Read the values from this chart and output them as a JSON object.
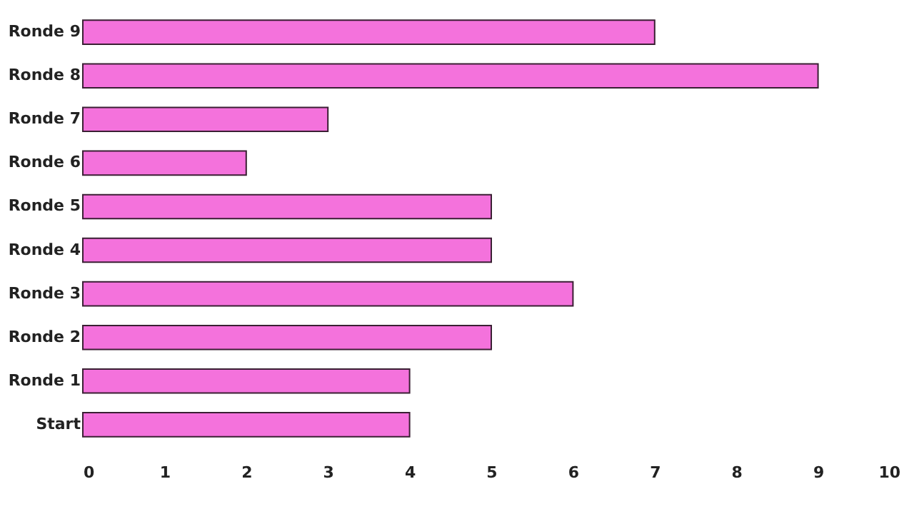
{
  "chart_data": {
    "type": "bar",
    "orientation": "horizontal",
    "categories": [
      "Ronde 9",
      "Ronde 8",
      "Ronde 7",
      "Ronde 6",
      "Ronde 5",
      "Ronde 4",
      "Ronde 3",
      "Ronde 2",
      "Ronde 1",
      "Start"
    ],
    "values": [
      7,
      9,
      3,
      2,
      5,
      5,
      6,
      5,
      4,
      4
    ],
    "color": "#f472dc",
    "xlim": [
      0,
      10
    ],
    "xticks": [
      0,
      1,
      2,
      3,
      4,
      5,
      6,
      7,
      8,
      9,
      10
    ],
    "grid": false
  }
}
